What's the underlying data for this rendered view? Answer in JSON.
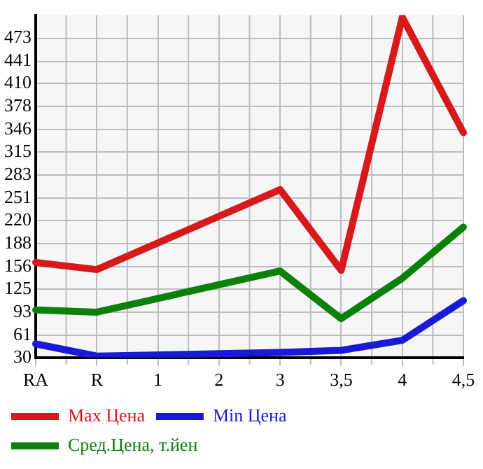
{
  "chart_data": {
    "type": "line",
    "categories": [
      "RA",
      "R",
      "1",
      "2",
      "3",
      "3,5",
      "4",
      "4,5"
    ],
    "series": [
      {
        "name": "Max Цена",
        "color": "#d7191c",
        "values": [
          162,
          152,
          null,
          null,
          263,
          151,
          502,
          342
        ]
      },
      {
        "name": "Min Цена",
        "color": "#1a1ad6",
        "values": [
          49,
          32,
          null,
          null,
          37,
          40,
          54,
          109
        ]
      },
      {
        "name": "Сред.Цена, т.йен",
        "color": "#0b800b",
        "values": [
          96,
          93,
          null,
          null,
          150,
          84,
          140,
          211
        ]
      }
    ],
    "ylim": [
      30,
      505
    ],
    "yticks": [
      30,
      61,
      93,
      125,
      156,
      188,
      220,
      251,
      283,
      315,
      346,
      378,
      410,
      441,
      473
    ],
    "grid": true,
    "legend": "bottom left",
    "marker": "none",
    "line_style": "solid"
  }
}
